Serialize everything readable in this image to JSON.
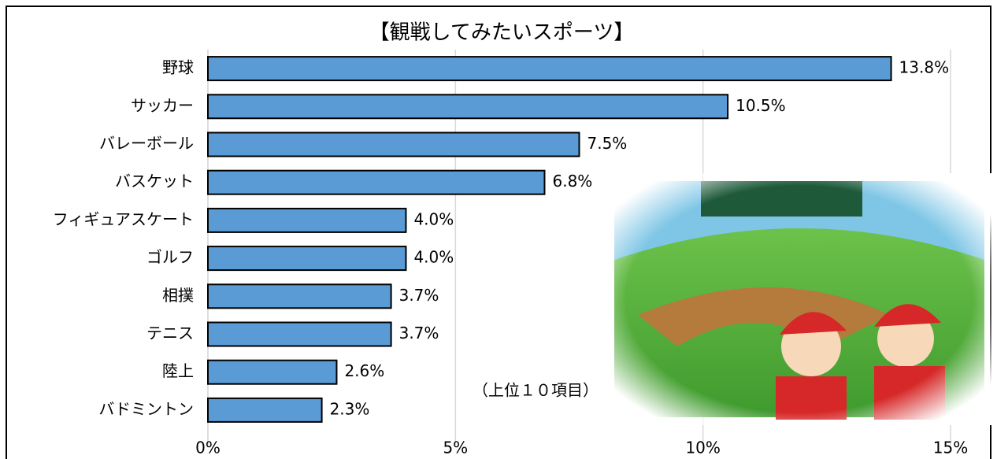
{
  "chart_data": {
    "type": "barh",
    "title": "【観戦してみたいスポーツ】",
    "annotation": "（上位１０項目）",
    "categories": [
      "野球",
      "サッカー",
      "バレーボール",
      "バスケット",
      "フィギュアスケート",
      "ゴルフ",
      "相撲",
      "テニス",
      "陸上",
      "バドミントン"
    ],
    "values": [
      13.8,
      10.5,
      7.5,
      6.8,
      4.0,
      4.0,
      3.7,
      3.7,
      2.6,
      2.3
    ],
    "value_labels": [
      "13.8%",
      "10.5%",
      "7.5%",
      "6.8%",
      "4.0%",
      "4.0%",
      "3.7%",
      "3.7%",
      "2.6%",
      "2.3%"
    ],
    "color": "#5b9bd5",
    "xlim": [
      0,
      15
    ],
    "xticks": [
      {
        "value": 0,
        "label": "0%"
      },
      {
        "value": 5,
        "label": "5%"
      },
      {
        "value": 10,
        "label": "10%"
      },
      {
        "value": 15,
        "label": "15%"
      }
    ],
    "grid": true
  }
}
